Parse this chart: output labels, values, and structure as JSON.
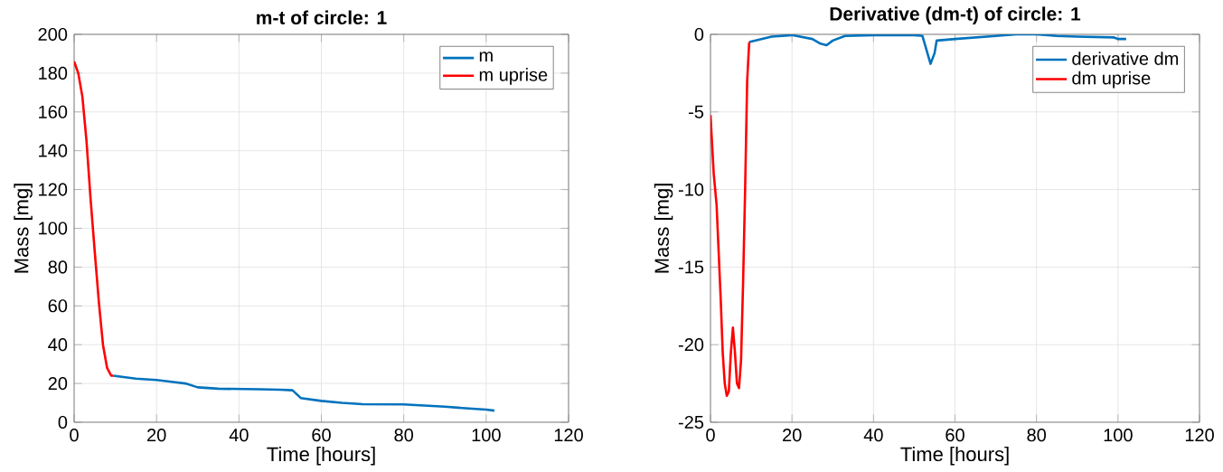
{
  "chart_data": [
    {
      "type": "line",
      "title": "m-t of circle: 1",
      "xlabel": "Time [hours]",
      "ylabel": "Mass [mg]",
      "xlim": [
        0,
        120
      ],
      "ylim": [
        0,
        200
      ],
      "xticks": [
        0,
        20,
        40,
        60,
        80,
        100,
        120
      ],
      "yticks": [
        0,
        20,
        40,
        60,
        80,
        100,
        120,
        140,
        160,
        180,
        200
      ],
      "grid": true,
      "legend": "top right",
      "series": [
        {
          "name": "m",
          "color": "#0072bd",
          "x": [
            9.5,
            15,
            20,
            25,
            27,
            30,
            35,
            45,
            50,
            53,
            55,
            60,
            65,
            70,
            80,
            90,
            95,
            100,
            102
          ],
          "values": [
            24,
            22.5,
            21.8,
            20.5,
            20,
            18,
            17.3,
            17,
            16.8,
            16.5,
            12.5,
            11,
            10,
            9.3,
            9.2,
            8,
            7.2,
            6.5,
            6
          ]
        },
        {
          "name": "m uprise",
          "color": "#ff0000",
          "x": [
            0,
            1,
            2,
            3,
            4,
            5,
            6,
            7,
            8,
            9,
            9.5
          ],
          "values": [
            186,
            180,
            168,
            145,
            115,
            88,
            62,
            40,
            28,
            24,
            24
          ]
        }
      ]
    },
    {
      "type": "line",
      "title": "Derivative (dm-t) of circle: 1",
      "xlabel": "Time [hours]",
      "ylabel": "Mass [mg]",
      "xlim": [
        0,
        120
      ],
      "ylim": [
        -25,
        0
      ],
      "xticks": [
        0,
        20,
        40,
        60,
        80,
        100,
        120
      ],
      "yticks": [
        -25,
        -20,
        -15,
        -10,
        -5,
        0
      ],
      "grid": true,
      "legend": "top right",
      "series": [
        {
          "name": "derivative dm",
          "color": "#0072bd",
          "x": [
            9.5,
            15,
            20,
            25,
            27,
            28.5,
            30,
            33,
            40,
            50,
            52,
            53,
            54,
            55,
            55.5,
            60,
            70,
            75,
            80,
            85,
            90,
            99,
            100,
            102
          ],
          "values": [
            -0.5,
            -0.15,
            -0.05,
            -0.3,
            -0.6,
            -0.7,
            -0.4,
            -0.1,
            -0.05,
            -0.05,
            -0.1,
            -1,
            -1.9,
            -1.2,
            -0.4,
            -0.3,
            -0.1,
            0,
            0,
            -0.1,
            -0.15,
            -0.2,
            -0.3,
            -0.3
          ]
        },
        {
          "name": "dm uprise",
          "color": "#ff0000",
          "x": [
            0,
            0.8,
            1.5,
            2,
            2.5,
            3,
            3.5,
            4,
            4.5,
            5,
            5.5,
            6,
            6.5,
            7,
            7.5,
            8,
            8.5,
            9,
            9.5
          ],
          "values": [
            -5.2,
            -9,
            -11,
            -14,
            -17,
            -20.5,
            -22.5,
            -23.3,
            -23,
            -20.5,
            -18.9,
            -20.5,
            -22.5,
            -22.8,
            -21,
            -16,
            -10,
            -3,
            -0.5
          ]
        }
      ]
    }
  ]
}
